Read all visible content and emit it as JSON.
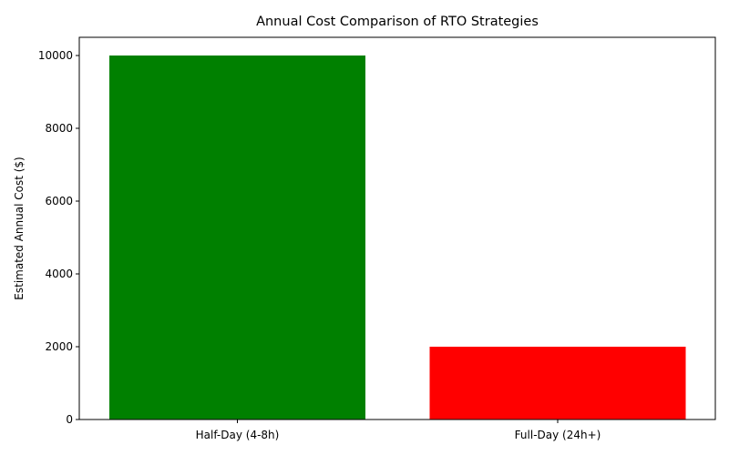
{
  "chart_data": {
    "type": "bar",
    "title": "Annual Cost Comparison of RTO Strategies",
    "xlabel": "",
    "ylabel": "Estimated Annual Cost ($)",
    "categories": [
      "Half-Day (4-8h)",
      "Full-Day (24h+)"
    ],
    "values": [
      10000,
      2000
    ],
    "colors": [
      "#008000",
      "#ff0000"
    ],
    "ylim": [
      0,
      10500
    ],
    "yticks": [
      0,
      2000,
      4000,
      6000,
      8000,
      10000
    ],
    "grid": false,
    "legend": "none"
  }
}
